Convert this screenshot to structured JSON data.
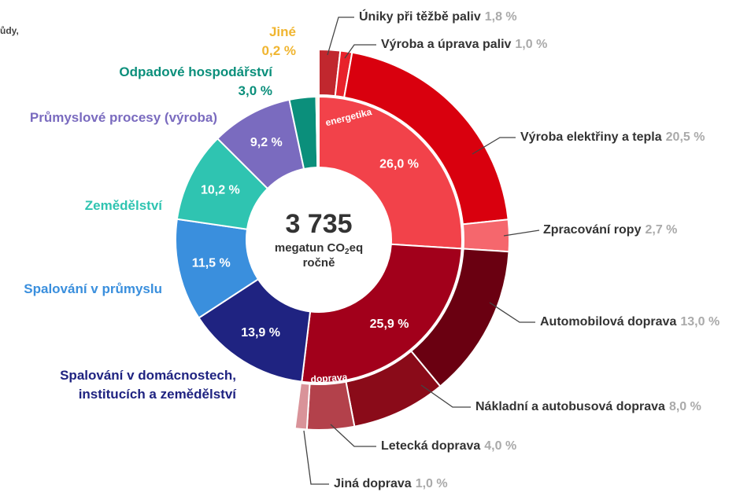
{
  "chart_data": {
    "type": "sunburst",
    "cut_text": "ůdy,",
    "total": 3735,
    "total_label": "3 735",
    "unit_main": "megatun CO",
    "unit_sub": "2",
    "unit_tail": "eq",
    "unit_line2": "ročně",
    "inner": {
      "categories": [
        "energetika",
        "doprava",
        "Spalování v domácnostech,\ninstitucích a zemědělství",
        "Spalování v průmyslu",
        "Zemědělství",
        "Průmyslové procesy (výroba)",
        "Odpadové hospodářství",
        "Jiné"
      ],
      "values": [
        26.0,
        25.9,
        13.9,
        11.5,
        10.2,
        9.2,
        3.0,
        0.2
      ],
      "value_labels": [
        "26,0 %",
        "25,9 %",
        "13,9 %",
        "11,5 %",
        "10,2 %",
        "9,2 %",
        "3,0 %",
        "0,2 %"
      ],
      "colors": [
        "#f2424a",
        "#a2001b",
        "#1f2381",
        "#3a8fdd",
        "#2fc4b1",
        "#7a6bbf",
        "#0b8f7b",
        "#f0b530"
      ]
    },
    "outer": {
      "categories": [
        "Úniky při těžbě paliv",
        "Výroba a úprava paliv",
        "Výroba elektřiny a tepla",
        "Zpracování ropy",
        "Automobilová doprava",
        "Nákladní a autobusová doprava",
        "Letecká doprava",
        "Jiná doprava"
      ],
      "values": [
        1.8,
        1.0,
        20.5,
        2.7,
        13.0,
        8.0,
        4.0,
        1.0
      ],
      "value_labels": [
        "1,8 %",
        "1,0 %",
        "20,5 %",
        "2,7 %",
        "13,0 %",
        "8,0 %",
        "4,0 %",
        "1,0 %"
      ],
      "colors": [
        "#c1272e",
        "#e8222b",
        "#d9000e",
        "#f5676d",
        "#6a0011",
        "#8a0b19",
        "#b3414b",
        "#d99399"
      ]
    }
  }
}
